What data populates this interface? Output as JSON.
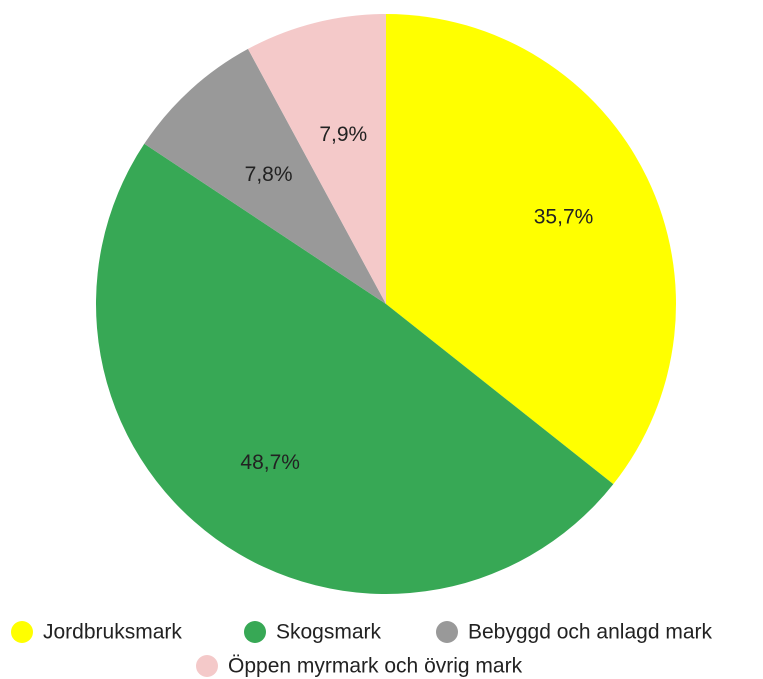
{
  "chart_data": {
    "type": "pie",
    "categories": [
      "Jordbruksmark",
      "Skogsmark",
      "Bebyggd och anlagd mark",
      "Öppen myrmark och övrig mark"
    ],
    "values": [
      35.7,
      48.7,
      7.8,
      7.9
    ],
    "value_labels": [
      "35,7%",
      "48,7%",
      "7,8%",
      "7,9%"
    ],
    "colors": [
      "#ffff00",
      "#37a855",
      "#999999",
      "#f4c9c9"
    ],
    "legend": "bottom"
  }
}
